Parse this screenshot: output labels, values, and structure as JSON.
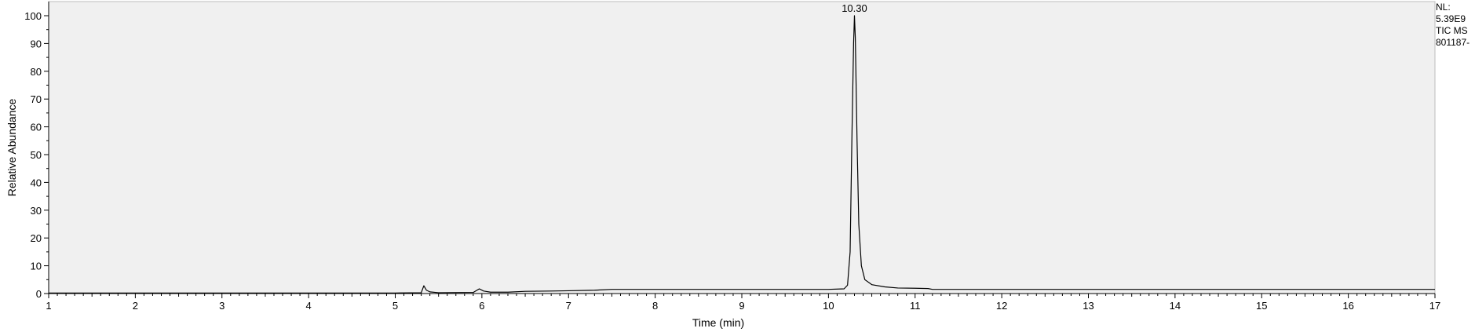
{
  "chart_data": {
    "type": "line",
    "title": "",
    "xlabel": "Time (min)",
    "ylabel": "Relative Abundance",
    "xlim": [
      1,
      17
    ],
    "ylim": [
      0,
      100
    ],
    "x_ticks": [
      1,
      2,
      3,
      4,
      5,
      6,
      7,
      8,
      9,
      10,
      11,
      12,
      13,
      14,
      15,
      16,
      17
    ],
    "y_ticks": [
      0,
      10,
      20,
      30,
      40,
      50,
      60,
      70,
      80,
      90,
      100
    ],
    "peak_labels": [
      {
        "x": 10.3,
        "y": 100,
        "text": "10.30"
      }
    ],
    "series": [
      {
        "name": "",
        "color": "#000000",
        "points": [
          [
            1.0,
            0.2
          ],
          [
            2.0,
            0.2
          ],
          [
            3.0,
            0.2
          ],
          [
            4.0,
            0.2
          ],
          [
            5.0,
            0.2
          ],
          [
            5.3,
            0.3
          ],
          [
            5.33,
            2.8
          ],
          [
            5.36,
            1.2
          ],
          [
            5.4,
            0.6
          ],
          [
            5.5,
            0.3
          ],
          [
            5.9,
            0.4
          ],
          [
            5.97,
            1.7
          ],
          [
            6.02,
            0.9
          ],
          [
            6.1,
            0.5
          ],
          [
            6.3,
            0.5
          ],
          [
            6.5,
            0.8
          ],
          [
            6.8,
            0.9
          ],
          [
            7.0,
            1.0
          ],
          [
            7.3,
            1.2
          ],
          [
            7.5,
            1.5
          ],
          [
            8.0,
            1.5
          ],
          [
            9.0,
            1.5
          ],
          [
            10.0,
            1.5
          ],
          [
            10.18,
            1.7
          ],
          [
            10.22,
            3.0
          ],
          [
            10.25,
            15.0
          ],
          [
            10.27,
            55.0
          ],
          [
            10.29,
            90.0
          ],
          [
            10.3,
            100.0
          ],
          [
            10.31,
            92.0
          ],
          [
            10.33,
            55.0
          ],
          [
            10.35,
            25.0
          ],
          [
            10.38,
            10.0
          ],
          [
            10.42,
            5.0
          ],
          [
            10.5,
            3.2
          ],
          [
            10.65,
            2.4
          ],
          [
            10.8,
            2.0
          ],
          [
            11.0,
            1.9
          ],
          [
            11.15,
            1.8
          ],
          [
            11.2,
            1.5
          ],
          [
            12.0,
            1.5
          ],
          [
            13.0,
            1.5
          ],
          [
            14.0,
            1.5
          ],
          [
            15.0,
            1.5
          ],
          [
            16.0,
            1.5
          ],
          [
            17.0,
            1.5
          ]
        ]
      }
    ],
    "grid": false,
    "background": "#f0f0f0"
  },
  "side_info": {
    "nl_label": "NL:",
    "nl_value": "5.39E9",
    "scan_filter": "TIC  MS",
    "file_name": "801187-"
  }
}
